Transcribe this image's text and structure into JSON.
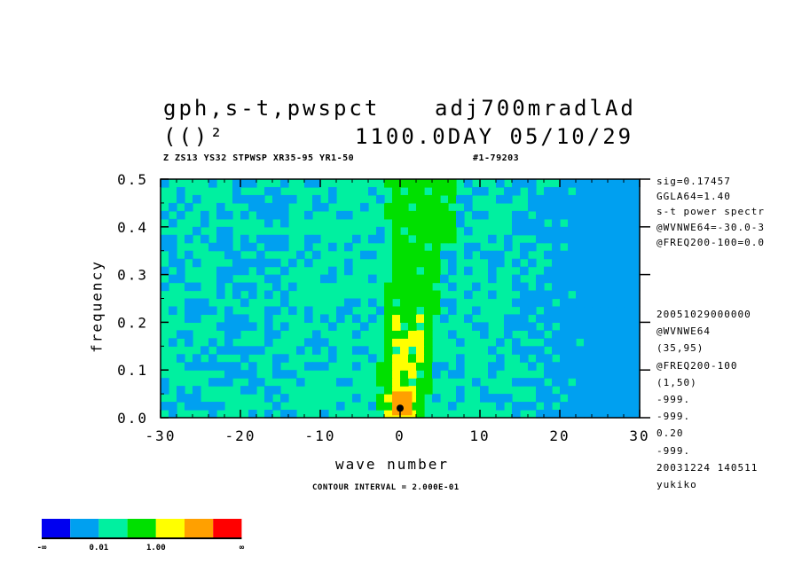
{
  "header": {
    "title_left": "gph,s-t,pwspct",
    "title_right": "adj700mradlAd",
    "subtitle_left": "(()²",
    "subtitle_right": "1100.0DAY 05/10/29",
    "info_line": "Z ZS13 YS32 STPWSP XR35-95 YR1-50",
    "info_id": "#1-79203"
  },
  "side_info": [
    "sig=0.17457",
    "GGLA64=1.40",
    "s-t power spectr",
    "@WVNWE64=-30.0-3",
    "@FREQ200-100=0.0",
    "",
    "20051029000000",
    "@WVNWE64",
    "(35,95)",
    "@FREQ200-100",
    "(1,50)",
    "-999.",
    "-999.",
    "0.20",
    "-999.",
    "20031224 140511",
    "yukiko"
  ],
  "footer": {
    "contour_interval": "CONTOUR INTERVAL = 2.000E-01"
  },
  "colorbar": {
    "colors": [
      "#0000f0",
      "#00a0f0",
      "#00f0a0",
      "#00e000",
      "#ffff00",
      "#ffa000",
      "#ff0000"
    ],
    "labels": [
      "-∞",
      "0.01",
      "1.00",
      "∞"
    ]
  },
  "chart_data": {
    "type": "heatmap",
    "xlabel": "wave number",
    "ylabel": "frequency",
    "xlim": [
      -30,
      30
    ],
    "ylim": [
      0.0,
      0.5
    ],
    "x_ticks": [
      -30,
      -20,
      -10,
      0,
      10,
      20,
      30
    ],
    "x_tick_labels": [
      "-30",
      "-20",
      "-10",
      "0",
      "10",
      "20",
      "30"
    ],
    "y_ticks": [
      0.0,
      0.1,
      0.2,
      0.3,
      0.4,
      0.5
    ],
    "y_tick_labels": [
      "0.0",
      "0.1",
      "0.2",
      "0.3",
      "0.4",
      "0.5"
    ],
    "levels_colors": {
      "below_0.01": "#00a0f0",
      "0.01_to_1.00": "#00f0a0",
      "1.00_to_high": "#00e000",
      "peak_high": "#ffff00",
      "peak_higher": "#ffa000",
      "maximum": "#000000"
    },
    "features": {
      "ridge_wavenumber_at_low_freq": 0,
      "ridge_wavenumber_at_high_freq": 3,
      "max_location": {
        "x": 0,
        "y": 0.02
      },
      "strong_low_power_region_x": [
        25,
        30
      ]
    }
  }
}
